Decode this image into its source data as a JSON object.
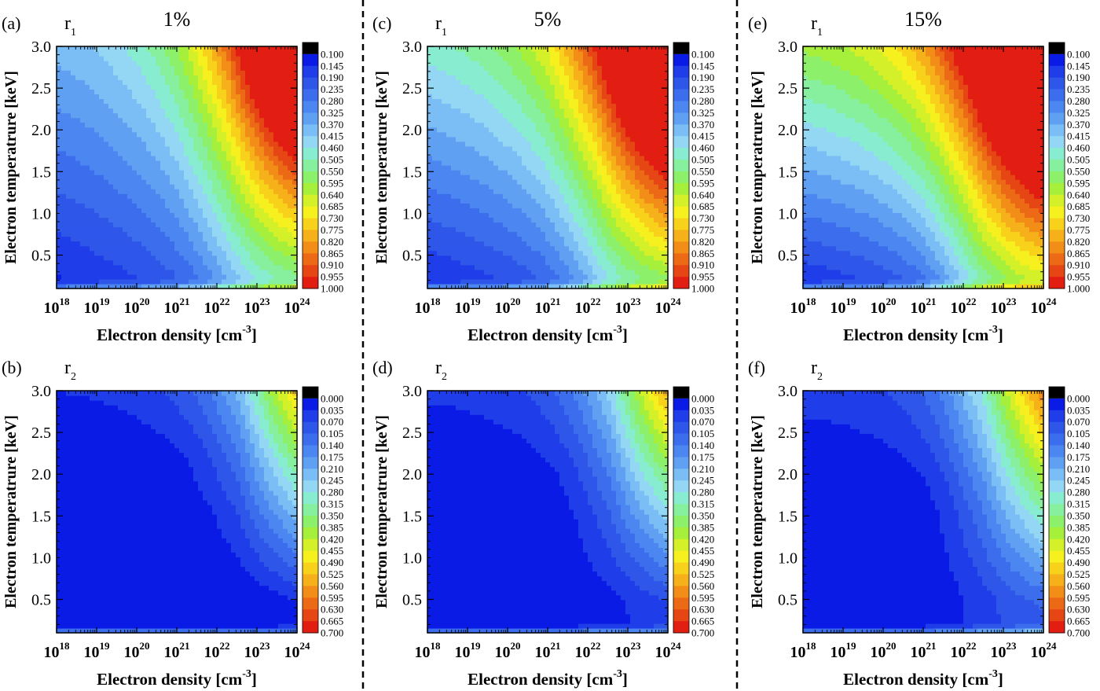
{
  "chart_data": {
    "type": "heatmap",
    "columns": [
      "1%",
      "5%",
      "15%"
    ],
    "xlabel": "Electron density [cm",
    "xlabel_exp": "-3",
    "xlabel_close": "]",
    "ylabel": "Electron temperatrure [keV]",
    "x_scale": "log",
    "xlim": [
      1e+18,
      1e+24
    ],
    "x_ticks": [
      {
        "base": "10",
        "exp": "18"
      },
      {
        "base": "10",
        "exp": "19"
      },
      {
        "base": "10",
        "exp": "20"
      },
      {
        "base": "10",
        "exp": "21"
      },
      {
        "base": "10",
        "exp": "22"
      },
      {
        "base": "10",
        "exp": "23"
      },
      {
        "base": "10",
        "exp": "24"
      }
    ],
    "ylim": [
      0.1,
      3.0
    ],
    "y_ticks": [
      "0.5",
      "1.0",
      "1.5",
      "2.0",
      "2.5",
      "3.0"
    ],
    "rows": [
      {
        "quantity": "r",
        "subscript": "1",
        "colorbar": {
          "min": 0.1,
          "max": 1.0,
          "step": 0.045,
          "labels": [
            "0.100",
            "0.145",
            "0.190",
            "0.235",
            "0.280",
            "0.325",
            "0.370",
            "0.415",
            "0.460",
            "0.505",
            "0.550",
            "0.595",
            "0.640",
            "0.685",
            "0.730",
            "0.775",
            "0.820",
            "0.865",
            "0.910",
            "0.955",
            "1.000"
          ]
        },
        "panels": [
          {
            "letter": "(a)",
            "column": "1%"
          },
          {
            "letter": "(c)",
            "column": "5%"
          },
          {
            "letter": "(e)",
            "column": "15%"
          }
        ]
      },
      {
        "quantity": "r",
        "subscript": "2",
        "colorbar": {
          "min": 0.0,
          "max": 0.7,
          "step": 0.035,
          "labels": [
            "0.000",
            "0.035",
            "0.070",
            "0.105",
            "0.140",
            "0.175",
            "0.210",
            "0.245",
            "0.280",
            "0.315",
            "0.350",
            "0.385",
            "0.420",
            "0.455",
            "0.490",
            "0.525",
            "0.560",
            "0.595",
            "0.630",
            "0.665",
            "0.700"
          ]
        },
        "panels": [
          {
            "letter": "(b)",
            "column": "1%"
          },
          {
            "letter": "(d)",
            "column": "5%"
          },
          {
            "letter": "(f)",
            "column": "15%"
          }
        ]
      }
    ],
    "colors": {
      "overflow": "#000000",
      "palette": [
        "#0a1be6",
        "#1f3de8",
        "#2e57ea",
        "#3b6ded",
        "#4c86f0",
        "#5fa0f2",
        "#7bbdf5",
        "#93d7f4",
        "#88edd0",
        "#86f09f",
        "#8df06a",
        "#a6f03c",
        "#d4f028",
        "#f5f01e",
        "#f8d21a",
        "#f5b01a",
        "#f28e18",
        "#ec6a16",
        "#e64614",
        "#e21d12"
      ]
    }
  }
}
